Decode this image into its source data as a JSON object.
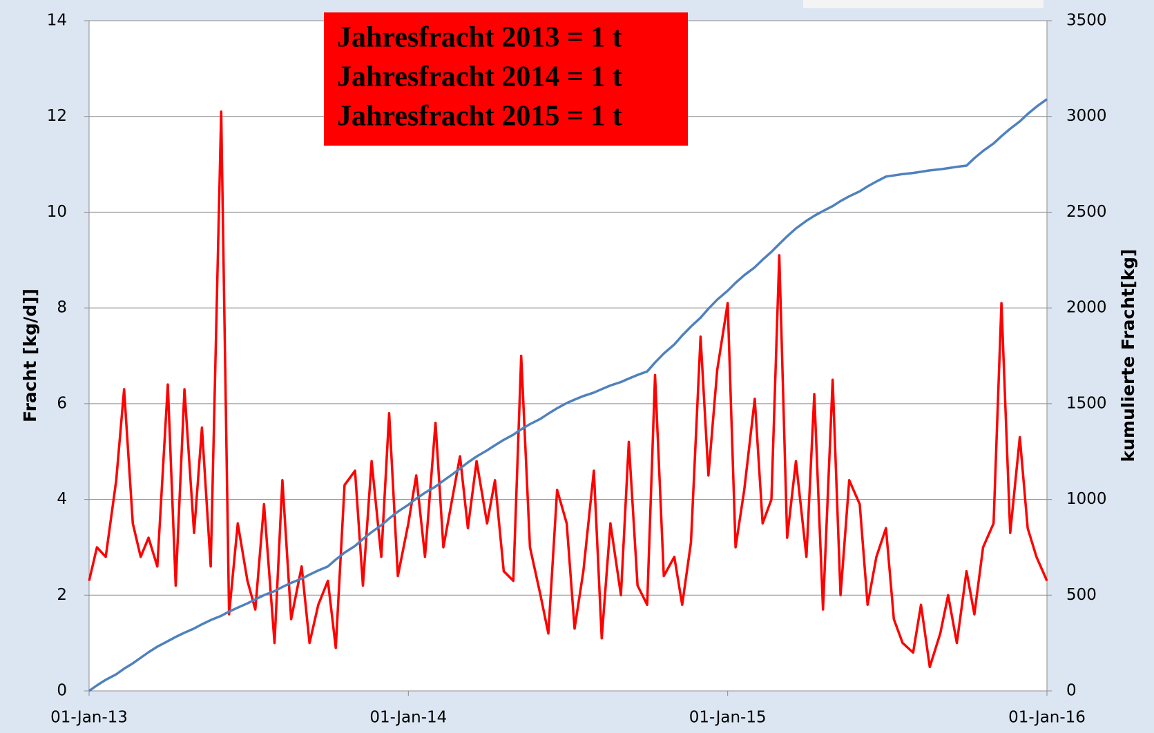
{
  "chart_data": {
    "type": "line",
    "annotations": [
      "Jahresfracht 2013 = 1 t",
      "Jahresfracht 2014 = 1 t",
      "Jahresfracht 2015 = 1 t"
    ],
    "ylabel": "Fracht [kg/d]]",
    "y2label": "kumulierte Fracht[kg]",
    "x": [
      "2013-01-01",
      "2013-01-10",
      "2013-01-20",
      "2013-02-01",
      "2013-02-10",
      "2013-02-20",
      "2013-03-01",
      "2013-03-10",
      "2013-03-20",
      "2013-04-01",
      "2013-04-10",
      "2013-04-20",
      "2013-05-01",
      "2013-05-10",
      "2013-05-20",
      "2013-06-01",
      "2013-06-10",
      "2013-06-20",
      "2013-07-01",
      "2013-07-10",
      "2013-07-20",
      "2013-08-01",
      "2013-08-10",
      "2013-08-20",
      "2013-09-01",
      "2013-09-10",
      "2013-09-20",
      "2013-10-01",
      "2013-10-10",
      "2013-10-20",
      "2013-11-01",
      "2013-11-10",
      "2013-11-20",
      "2013-12-01",
      "2013-12-10",
      "2013-12-20",
      "2014-01-01",
      "2014-01-10",
      "2014-01-20",
      "2014-02-01",
      "2014-02-10",
      "2014-02-20",
      "2014-03-01",
      "2014-03-10",
      "2014-03-20",
      "2014-04-01",
      "2014-04-10",
      "2014-04-20",
      "2014-05-01",
      "2014-05-10",
      "2014-05-20",
      "2014-06-01",
      "2014-06-10",
      "2014-06-20",
      "2014-07-01",
      "2014-07-10",
      "2014-07-20",
      "2014-08-01",
      "2014-08-10",
      "2014-08-20",
      "2014-09-01",
      "2014-09-10",
      "2014-09-20",
      "2014-10-01",
      "2014-10-10",
      "2014-10-20",
      "2014-11-01",
      "2014-11-10",
      "2014-11-20",
      "2014-12-01",
      "2014-12-10",
      "2014-12-20",
      "2015-01-01",
      "2015-01-10",
      "2015-01-20",
      "2015-02-01",
      "2015-02-10",
      "2015-02-20",
      "2015-03-01",
      "2015-03-10",
      "2015-03-20",
      "2015-04-01",
      "2015-04-10",
      "2015-04-20",
      "2015-05-01",
      "2015-05-10",
      "2015-05-20",
      "2015-06-01",
      "2015-06-10",
      "2015-06-20",
      "2015-07-01",
      "2015-07-10",
      "2015-07-20",
      "2015-08-01",
      "2015-08-10",
      "2015-08-20",
      "2015-09-01",
      "2015-09-10",
      "2015-09-20",
      "2015-10-01",
      "2015-10-10",
      "2015-10-20",
      "2015-11-01",
      "2015-11-10",
      "2015-11-20",
      "2015-12-01",
      "2015-12-10",
      "2015-12-20",
      "2016-01-01"
    ],
    "series": [
      {
        "color": "#ff0000",
        "axis": "y",
        "values": [
          2.3,
          3.0,
          2.8,
          4.4,
          6.3,
          3.5,
          2.8,
          3.2,
          2.6,
          6.4,
          2.2,
          6.3,
          3.3,
          5.5,
          2.6,
          12.1,
          1.6,
          3.5,
          2.3,
          1.7,
          3.9,
          1.0,
          4.4,
          1.5,
          2.6,
          1.0,
          1.8,
          2.3,
          0.9,
          4.3,
          4.6,
          2.2,
          4.8,
          2.8,
          5.8,
          2.4,
          3.5,
          4.5,
          2.8,
          5.6,
          3.0,
          4.0,
          4.9,
          3.4,
          4.8,
          3.5,
          4.4,
          2.5,
          2.3,
          7.0,
          3.0,
          2.0,
          1.2,
          4.2,
          3.5,
          1.3,
          2.5,
          4.6,
          1.1,
          3.5,
          2.0,
          5.2,
          2.2,
          1.8,
          6.6,
          2.4,
          2.8,
          1.8,
          3.1,
          7.4,
          4.5,
          6.7,
          8.1,
          3.0,
          4.2,
          6.1,
          3.5,
          4.0,
          9.1,
          3.2,
          4.8,
          2.8,
          6.2,
          1.7,
          6.5,
          2.0,
          4.4,
          3.9,
          1.8,
          2.8,
          3.4,
          1.5,
          1.0,
          0.8,
          1.8,
          0.5,
          1.2,
          2.0,
          1.0,
          2.5,
          1.6,
          3.0,
          3.5,
          8.1,
          3.3,
          5.3,
          3.4,
          2.8,
          2.3
        ]
      },
      {
        "color": "#4f81bd",
        "axis": "y2",
        "values": [
          0,
          29,
          58,
          87,
          116,
          144,
          173,
          202,
          231,
          260,
          282,
          304,
          326,
          348,
          370,
          392,
          414,
          435,
          457,
          478,
          500,
          521,
          543,
          564,
          586,
          607,
          629,
          650,
          686,
          722,
          757,
          793,
          829,
          865,
          900,
          936,
          972,
          1004,
          1035,
          1067,
          1098,
          1130,
          1161,
          1193,
          1224,
          1256,
          1283,
          1311,
          1338,
          1366,
          1393,
          1421,
          1448,
          1476,
          1503,
          1521,
          1540,
          1558,
          1576,
          1595,
          1613,
          1631,
          1650,
          1668,
          1715,
          1762,
          1809,
          1856,
          1903,
          1949,
          1996,
          2043,
          2090,
          2131,
          2171,
          2212,
          2252,
          2293,
          2334,
          2374,
          2415,
          2455,
          2481,
          2506,
          2532,
          2558,
          2583,
          2609,
          2635,
          2660,
          2686,
          2692,
          2699,
          2705,
          2711,
          2718,
          2724,
          2730,
          2737,
          2743,
          2782,
          2820,
          2859,
          2897,
          2936,
          2974,
          3013,
          3051,
          3090
        ]
      }
    ],
    "xlim": [
      "2013-01-01",
      "2016-01-01"
    ],
    "xticks": [
      {
        "value": "2013-01-01",
        "label": "01-Jan-13"
      },
      {
        "value": "2014-01-01",
        "label": "01-Jan-14"
      },
      {
        "value": "2015-01-01",
        "label": "01-Jan-15"
      },
      {
        "value": "2016-01-01",
        "label": "01-Jan-16"
      }
    ],
    "ylim": [
      0,
      14
    ],
    "yticks": [
      0,
      2,
      4,
      6,
      8,
      10,
      12,
      14
    ],
    "y2lim": [
      0,
      3500
    ],
    "y2ticks": [
      0,
      500,
      1000,
      1500,
      2000,
      2500,
      3000,
      3500
    ],
    "grid": true
  }
}
